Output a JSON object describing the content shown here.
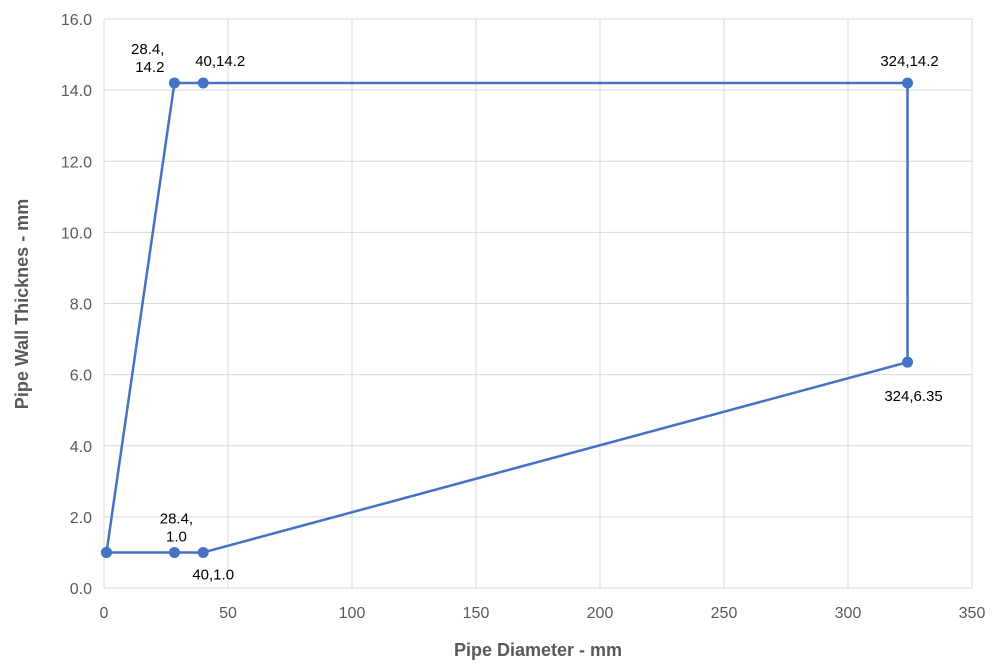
{
  "chart_data": {
    "type": "scatter",
    "title": "",
    "xlabel": "Pipe Diameter - mm",
    "ylabel": "Pipe Wall Thicknes - mm",
    "xlim": [
      0,
      350
    ],
    "ylim": [
      0,
      16
    ],
    "x_ticks": [
      "0",
      "50",
      "100",
      "150",
      "200",
      "250",
      "300",
      "350"
    ],
    "y_ticks": [
      "0.0",
      "2.0",
      "4.0",
      "6.0",
      "8.0",
      "10.0",
      "12.0",
      "14.0",
      "16.0"
    ],
    "grid": true,
    "legend": "none",
    "series": [
      {
        "color": "#4472C4",
        "connected": true,
        "points": [
          {
            "x": 1,
            "y": 1.0,
            "label": ""
          },
          {
            "x": 28.4,
            "y": 14.2,
            "label": "28.4,\n14.2"
          },
          {
            "x": 40,
            "y": 14.2,
            "label": "40,14.2"
          },
          {
            "x": 324,
            "y": 14.2,
            "label": "324,14.2"
          },
          {
            "x": 324,
            "y": 6.35,
            "label": "324,6.35"
          },
          {
            "x": 40,
            "y": 1.0,
            "label": "40,1.0"
          },
          {
            "x": 28.4,
            "y": 1.0,
            "label": "28.4,\n1.0"
          },
          {
            "x": 1,
            "y": 1.0,
            "label": ""
          }
        ]
      }
    ]
  }
}
